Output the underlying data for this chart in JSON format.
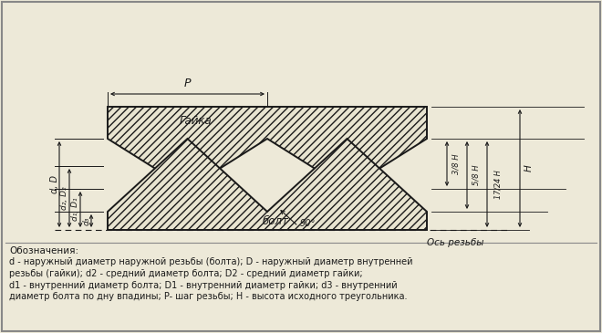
{
  "fig_width": 6.6,
  "fig_height": 3.65,
  "dpi": 100,
  "bg_color": "#ede9d8",
  "line_color": "#1a1a1a",
  "text_color": "#1a1a1a",
  "label_gaika": "Гайка",
  "label_bolt": "болт",
  "label_os": "Ось резьбы",
  "label_P": "P",
  "label_90": "90°",
  "label_d_D": "d, D",
  "label_d2_D2": "d₂, D₂",
  "label_d1_D1": "d₁, D₁",
  "label_d3": "d₃",
  "label_3H8": "3/8 H",
  "label_5H8": "5/8 H",
  "label_17H24": "17/24 H",
  "label_H": "H",
  "label_oboz": "Обозначения:",
  "label_text1": "d - наружный диаметр наружной резьбы (болта); D - наружный диаметр внутренней",
  "label_text2": "резьбы (гайки); d2 - средний диаметр болта; D2 - средний диаметр гайки;",
  "label_text3": "d1 - внутренний диаметр болта; D1 - внутренний диаметр гайки; d3 - внутренний",
  "label_text4": "диаметр болта по дну впадины; P- шаг резьбы; Н - высота исходного треугольника."
}
